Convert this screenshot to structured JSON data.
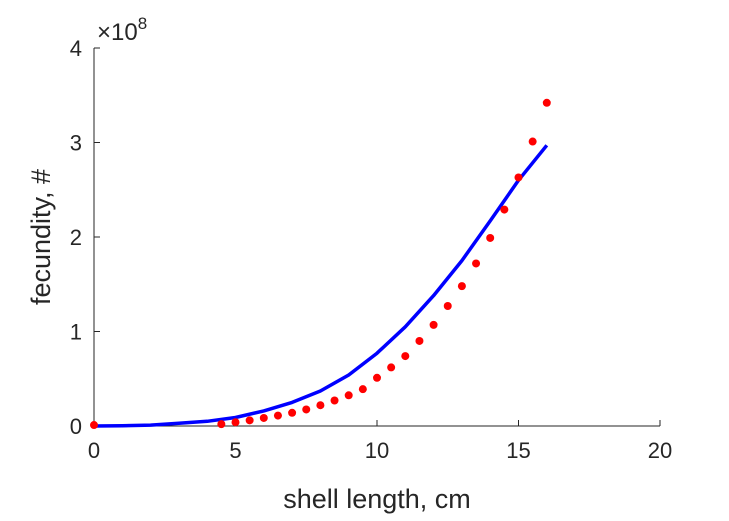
{
  "chart_data": {
    "type": "scatter",
    "xlabel": "shell length, cm",
    "ylabel": "fecundity, #",
    "xlim": [
      0,
      20
    ],
    "ylim": [
      0,
      400000000
    ],
    "x_ticks": [
      "0",
      "5",
      "10",
      "15",
      "20"
    ],
    "y_ticks": [
      "0",
      "1",
      "2",
      "3",
      "4"
    ],
    "y_exponent_prefix": "×10",
    "y_exponent_power": "8",
    "grid": false,
    "series": [
      {
        "kind": "points",
        "color": "#ff0000",
        "x": [
          0,
          4.5,
          5,
          5.5,
          6,
          6.5,
          7,
          7.5,
          8,
          8.5,
          9,
          9.5,
          10,
          10.5,
          11,
          11.5,
          12,
          12.5,
          13,
          13.5,
          14,
          14.5,
          15,
          15.5,
          16
        ],
        "y": [
          1000000,
          2000000,
          4000000,
          6000000,
          8500000,
          11000000,
          14000000,
          17500000,
          22000000,
          27000000,
          32500000,
          39000000,
          51000000,
          62000000,
          74000000,
          90000000,
          107000000,
          127000000,
          148000000,
          172000000,
          199000000,
          229000000,
          263000000,
          301000000,
          342000000
        ]
      },
      {
        "kind": "curve",
        "color": "#0000ff",
        "x": [
          0,
          1,
          2,
          3,
          4,
          5,
          6,
          7,
          8,
          9,
          10,
          11,
          12,
          13,
          14,
          15,
          16
        ],
        "y": [
          0,
          200000,
          1000000,
          3000000,
          5000000,
          9000000,
          16000000,
          25000000,
          37000000,
          54000000,
          77000000,
          105000000,
          138000000,
          175000000,
          217000000,
          260000000,
          297000000
        ]
      }
    ]
  }
}
